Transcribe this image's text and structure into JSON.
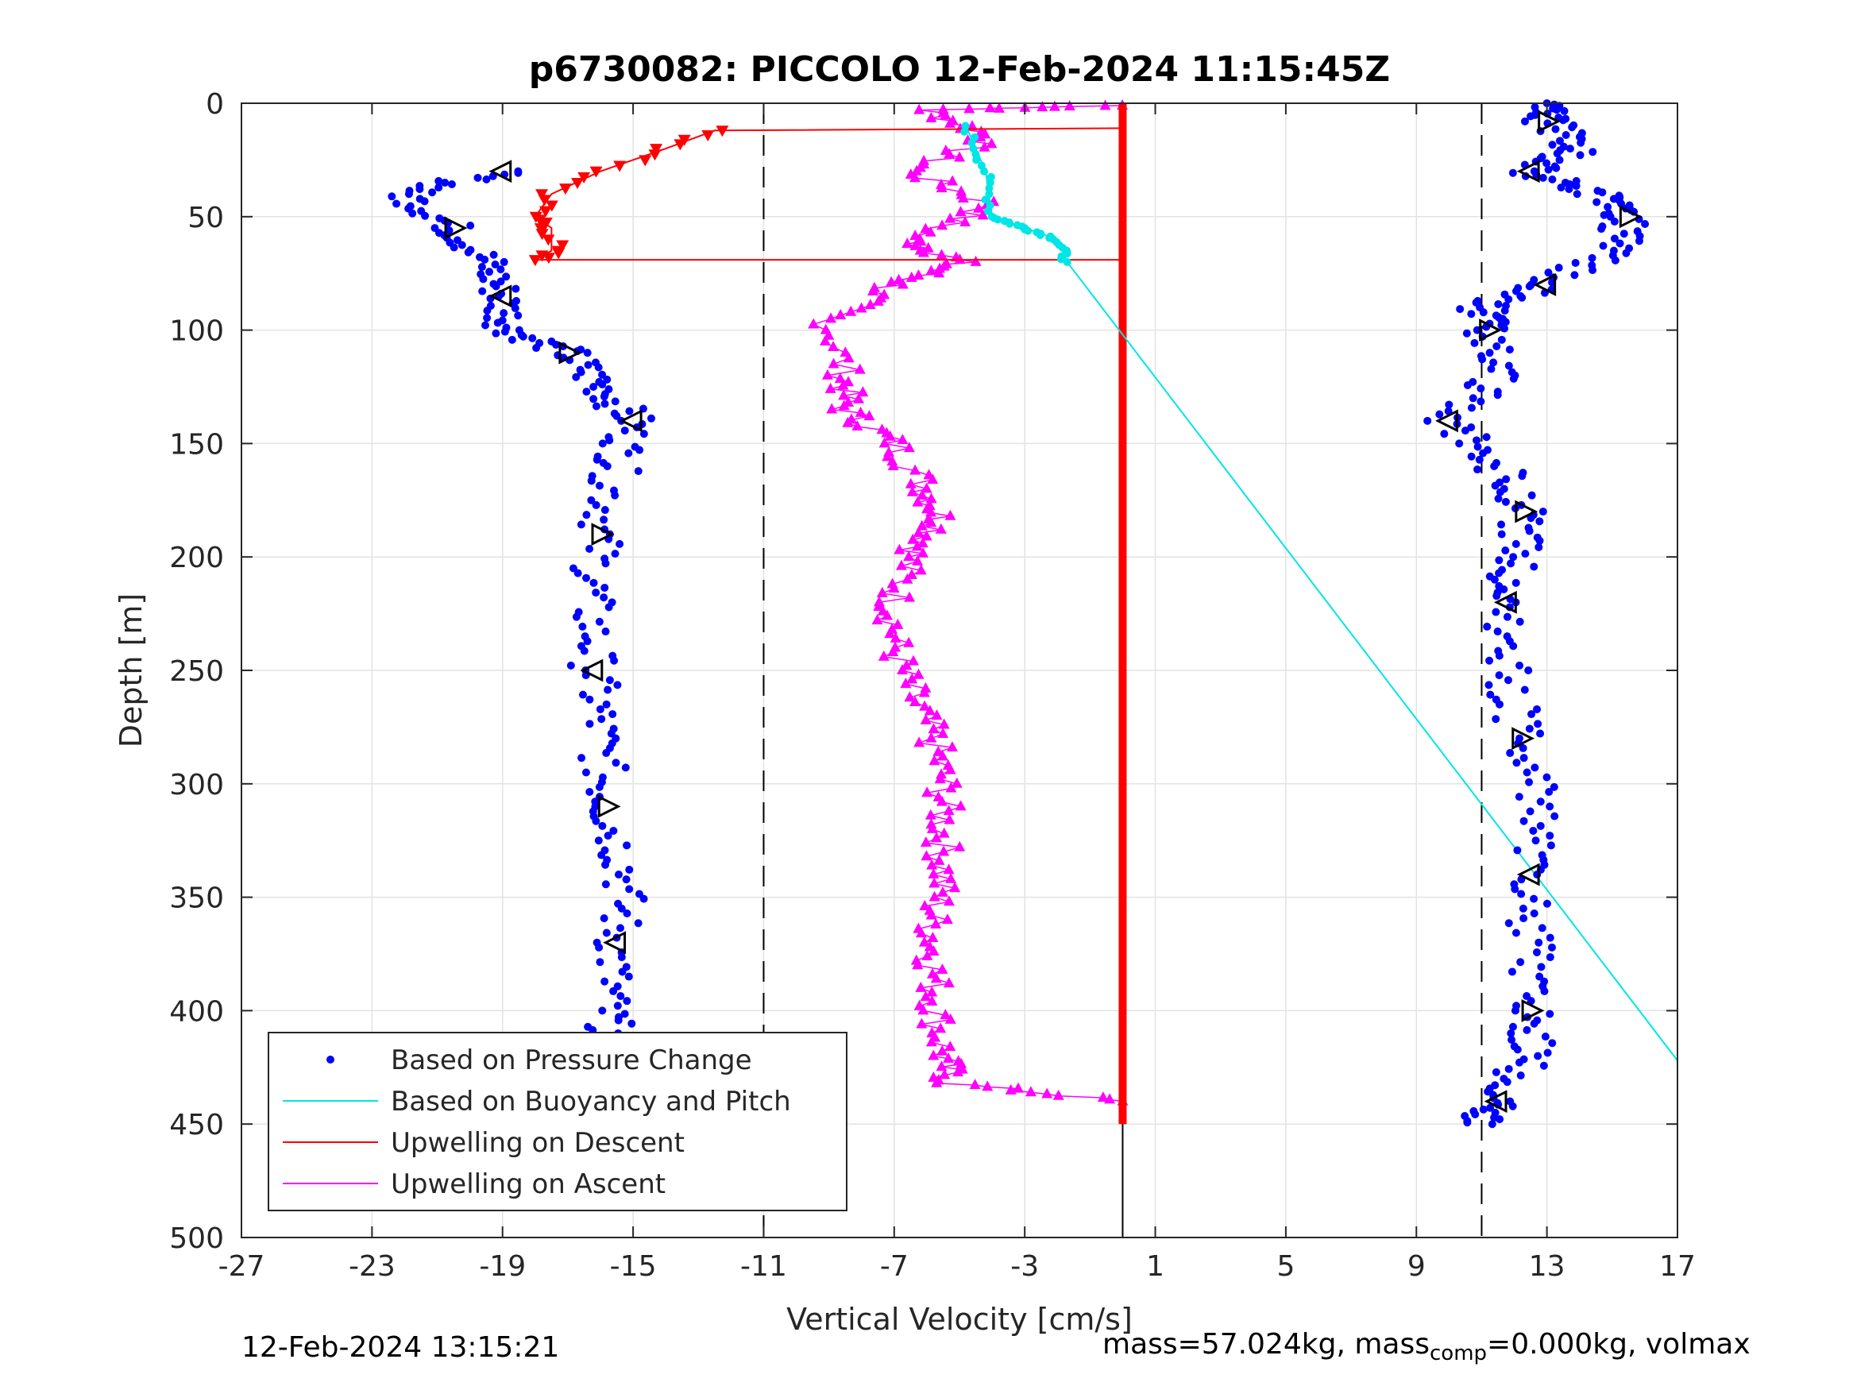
{
  "chart_data": {
    "type": "scatter",
    "title": "p6730082: PICCOLO 12-Feb-2024 11:15:45Z",
    "xlabel": "Vertical Velocity [cm/s]",
    "ylabel": "Depth [m]",
    "xlim": [
      -27,
      17
    ],
    "ylim": [
      0,
      500
    ],
    "y_reversed": true,
    "x_ticks": [
      "-27",
      "-23",
      "-19",
      "-15",
      "-11",
      "-7",
      "-3",
      "1",
      "5",
      "9",
      "13",
      "17"
    ],
    "y_ticks": [
      "0",
      "50",
      "100",
      "150",
      "200",
      "250",
      "300",
      "350",
      "400",
      "450",
      "500"
    ],
    "grid": true,
    "legend_position": "bottom-left",
    "reference_lines": [
      {
        "style": "dashed",
        "x": -11
      },
      {
        "style": "dashed",
        "x": 11
      },
      {
        "style": "solid",
        "x": 0
      }
    ],
    "legend": [
      {
        "label": "Based on Pressure Change",
        "color": "#0000ff",
        "marker": "dot"
      },
      {
        "label": "Based on Buoyancy and Pitch",
        "color": "#00e5e5",
        "marker": "line"
      },
      {
        "label": "Upwelling on Descent",
        "color": "#ff0000",
        "marker": "line"
      },
      {
        "label": "Upwelling on Ascent",
        "color": "#ff00ff",
        "marker": "line"
      }
    ],
    "series": [
      {
        "name": "Based on Pressure Change",
        "color": "#0000ff",
        "descent_profile": [
          [
            -19,
            30
          ],
          [
            -22,
            40
          ],
          [
            -20.5,
            55
          ],
          [
            -19.5,
            70
          ],
          [
            -19,
            85
          ],
          [
            -18.8,
            100
          ],
          [
            -17,
            110
          ],
          [
            -16,
            125
          ],
          [
            -15,
            140
          ],
          [
            -15.5,
            160
          ],
          [
            -16,
            190
          ],
          [
            -16.3,
            220
          ],
          [
            -16.2,
            250
          ],
          [
            -16,
            280
          ],
          [
            -15.8,
            310
          ],
          [
            -15.2,
            340
          ],
          [
            -15.5,
            370
          ],
          [
            -15.8,
            400
          ],
          [
            -15.5,
            420
          ],
          [
            -16,
            440
          ]
        ],
        "ascent_profile": [
          [
            11,
            450
          ],
          [
            11.5,
            440
          ],
          [
            12.5,
            420
          ],
          [
            12.5,
            400
          ],
          [
            12.5,
            370
          ],
          [
            12.5,
            340
          ],
          [
            12.8,
            310
          ],
          [
            12.2,
            280
          ],
          [
            11.8,
            250
          ],
          [
            11.8,
            220
          ],
          [
            12,
            200
          ],
          [
            12.3,
            180
          ],
          [
            11.5,
            160
          ],
          [
            10,
            140
          ],
          [
            11.5,
            120
          ],
          [
            11.2,
            100
          ],
          [
            11,
            90
          ],
          [
            13,
            80
          ],
          [
            15,
            65
          ],
          [
            15.5,
            50
          ],
          [
            14.5,
            40
          ],
          [
            12.5,
            30
          ],
          [
            14,
            20
          ],
          [
            13,
            8
          ],
          [
            13,
            0
          ]
        ]
      },
      {
        "name": "Based on Buoyancy and Pitch",
        "color": "#00e5e5",
        "points": [
          [
            -4.8,
            10
          ],
          [
            -4.2,
            30
          ],
          [
            -4,
            50
          ],
          [
            -3,
            55
          ],
          [
            -2,
            60
          ],
          [
            -1.7,
            70
          ],
          [
            17,
            422
          ]
        ]
      },
      {
        "name": "Upwelling on Descent",
        "color": "#ff0000",
        "points": [
          [
            0,
            11
          ],
          [
            -12.5,
            12
          ],
          [
            -14,
            20
          ],
          [
            -16,
            30
          ],
          [
            -17.5,
            40
          ],
          [
            -18,
            50
          ],
          [
            -17.5,
            55
          ],
          [
            -17.5,
            65
          ],
          [
            -18,
            69
          ],
          [
            0,
            69
          ],
          [
            0,
            450
          ]
        ]
      },
      {
        "name": "Upwelling on Ascent",
        "color": "#ff00ff",
        "points": [
          [
            0,
            1
          ],
          [
            -6,
            3
          ],
          [
            -4,
            15
          ],
          [
            -6.5,
            30
          ],
          [
            -4,
            45
          ],
          [
            -6.5,
            60
          ],
          [
            -5,
            70
          ],
          [
            -7,
            80
          ],
          [
            -9,
            95
          ],
          [
            -8.5,
            120
          ],
          [
            -8.5,
            135
          ],
          [
            -7,
            150
          ],
          [
            -6,
            170
          ],
          [
            -5.5,
            185
          ],
          [
            -6.5,
            200
          ],
          [
            -7,
            220
          ],
          [
            -7,
            240
          ],
          [
            -6.5,
            260
          ],
          [
            -5.8,
            280
          ],
          [
            -5.5,
            300
          ],
          [
            -5.5,
            320
          ],
          [
            -5.5,
            340
          ],
          [
            -5.8,
            360
          ],
          [
            -5.8,
            380
          ],
          [
            -5.7,
            400
          ],
          [
            -5.5,
            420
          ],
          [
            -5.3,
            432
          ],
          [
            0,
            440
          ]
        ]
      }
    ]
  },
  "footer": {
    "timestamp": "12-Feb-2024 13:15:21",
    "mass_text": "mass=57.024kg, mass",
    "mass_sub": "comp",
    "mass_rest": "=0.000kg, volmax"
  }
}
